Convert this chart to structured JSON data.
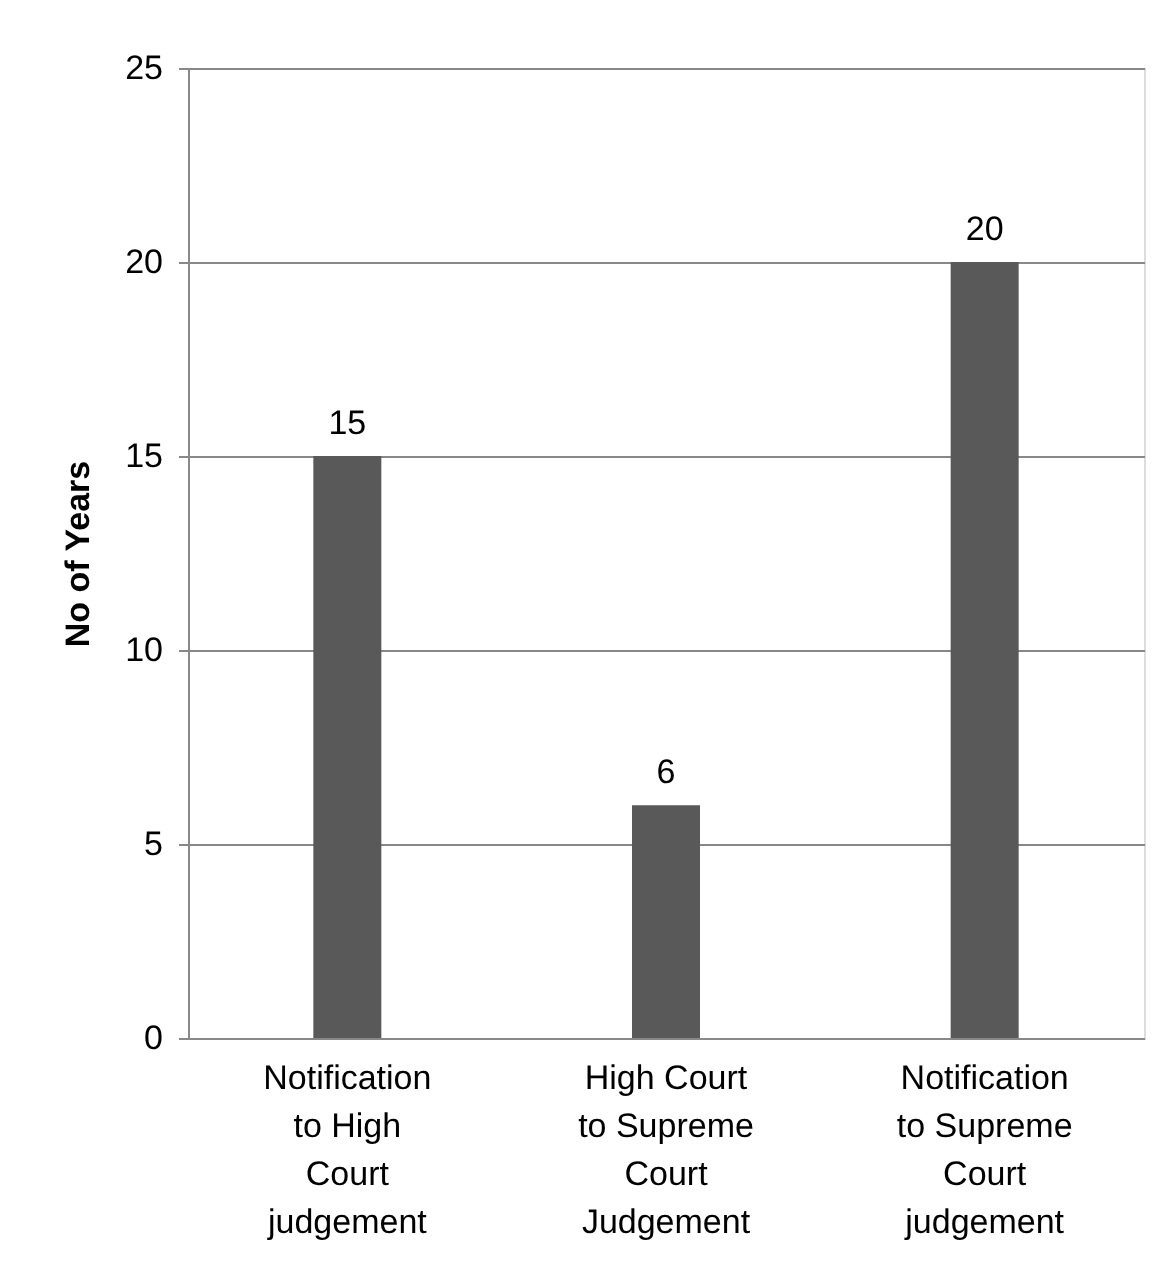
{
  "chart_data": {
    "type": "bar",
    "ylabel": "No of Years",
    "categories": [
      "Notification to High Court judgement",
      "High Court to Supreme Court Judgement",
      "Notification to Supreme Court judgement"
    ],
    "values": [
      15,
      6,
      20
    ],
    "color": "#595959",
    "ylim": [
      0,
      25
    ],
    "yticks": [
      0,
      5,
      10,
      15,
      20,
      25
    ],
    "grid": "y",
    "data_labels": true
  }
}
